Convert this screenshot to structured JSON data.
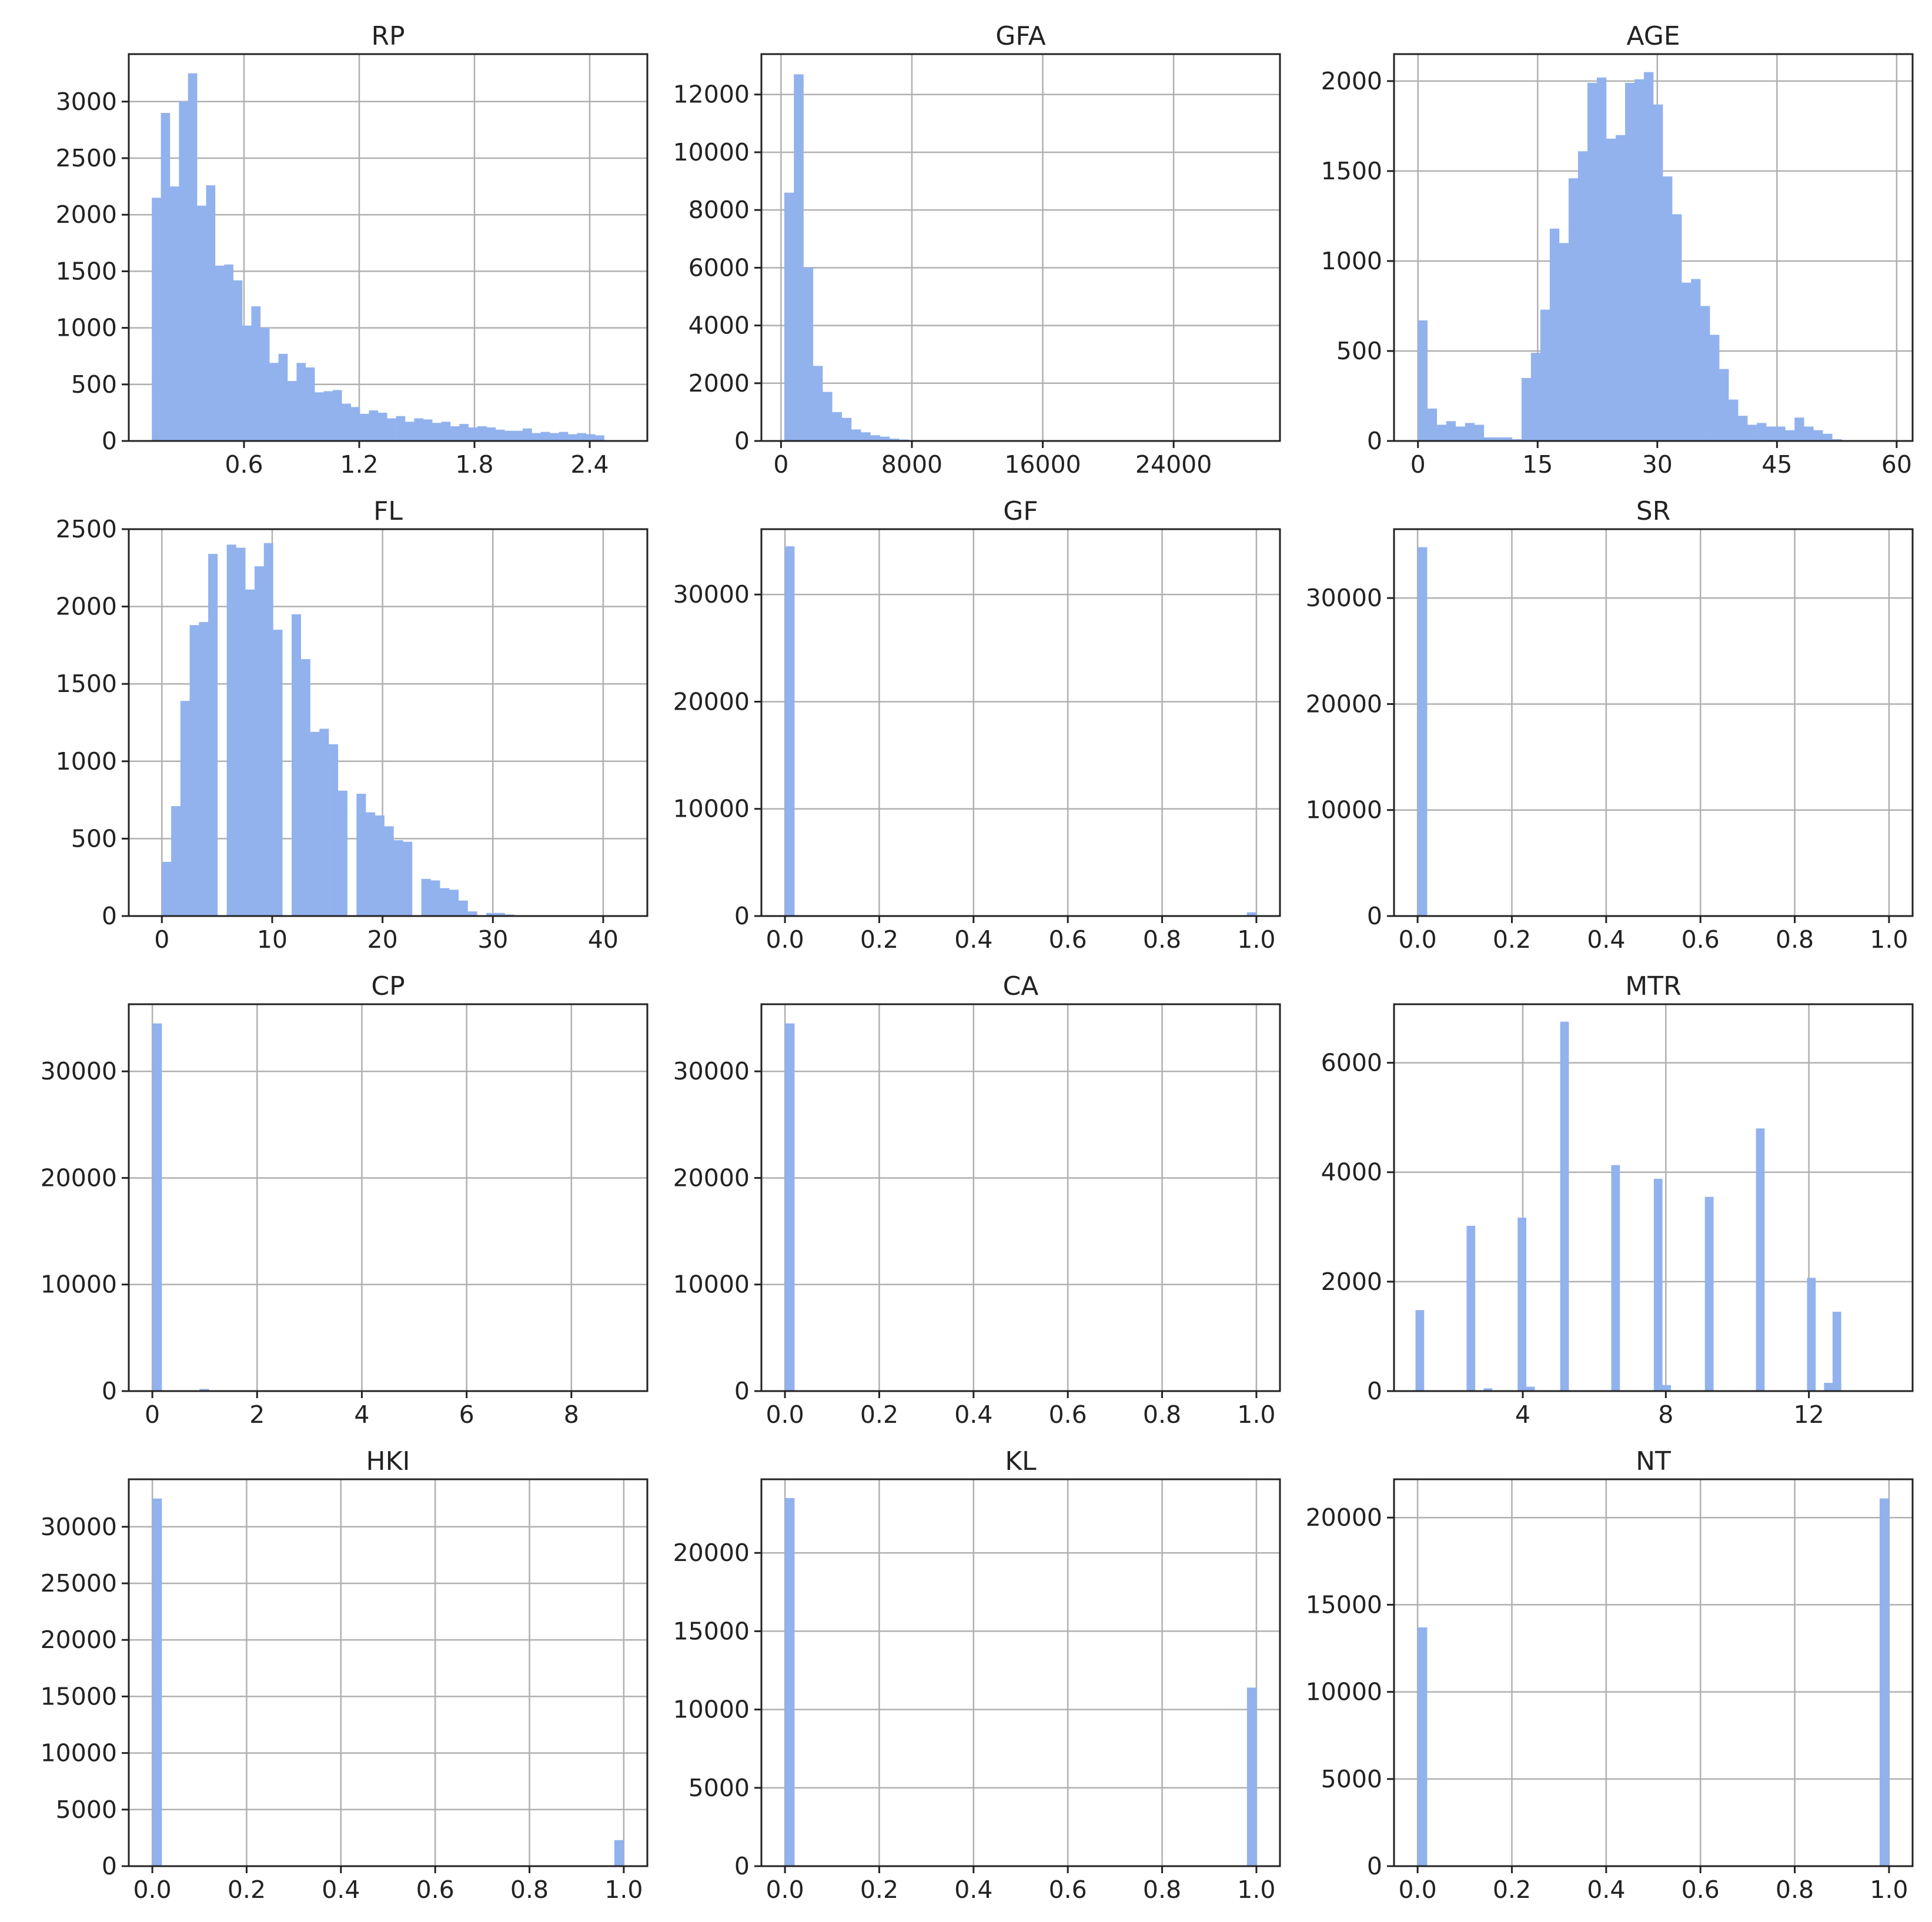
{
  "bar_color": "#92b2ee",
  "chart_data": [
    {
      "type": "bar",
      "title": "RP",
      "grid": true,
      "xlim": [
        0.0,
        2.7
      ],
      "ylim": [
        0,
        3420
      ],
      "xticks": [
        0.6,
        1.2,
        1.8,
        2.4
      ],
      "xtick_labels": [
        "0.6",
        "1.2",
        "1.8",
        "2.4"
      ],
      "yticks": [
        0,
        500,
        1000,
        1500,
        2000,
        2500,
        3000
      ],
      "ytick_labels": [
        "0",
        "500",
        "1000",
        "1500",
        "2000",
        "2500",
        "3000"
      ],
      "bin_start": 0.12,
      "bin_width": 0.0471,
      "values": [
        2150,
        2900,
        2250,
        3000,
        3250,
        2080,
        2260,
        1550,
        1560,
        1420,
        1020,
        1190,
        1000,
        690,
        770,
        530,
        690,
        650,
        430,
        440,
        450,
        330,
        300,
        240,
        270,
        250,
        200,
        220,
        170,
        200,
        190,
        160,
        170,
        130,
        150,
        120,
        130,
        120,
        100,
        90,
        90,
        110,
        70,
        80,
        70,
        80,
        60,
        70,
        60,
        50
      ]
    },
    {
      "type": "bar",
      "title": "GFA",
      "grid": true,
      "xlim": [
        -1200,
        30500
      ],
      "ylim": [
        0,
        13400
      ],
      "xticks": [
        0,
        8000,
        16000,
        24000
      ],
      "xtick_labels": [
        "0",
        "8000",
        "16000",
        "24000"
      ],
      "yticks": [
        0,
        2000,
        4000,
        6000,
        8000,
        10000,
        12000
      ],
      "ytick_labels": [
        "0",
        "2000",
        "4000",
        "6000",
        "8000",
        "10000",
        "12000"
      ],
      "bin_start": 200,
      "bin_width": 585,
      "values": [
        8600,
        12700,
        6000,
        2600,
        1700,
        1000,
        800,
        400,
        300,
        200,
        150,
        80,
        50,
        30,
        20,
        15,
        10,
        8,
        6,
        5,
        4,
        3,
        3,
        2,
        2,
        2,
        1,
        1,
        1,
        1,
        1,
        1,
        1,
        1,
        1,
        1,
        1,
        1,
        1,
        1,
        1,
        1,
        1,
        1,
        1,
        1,
        1,
        1,
        1,
        1
      ]
    },
    {
      "type": "bar",
      "title": "AGE",
      "grid": true,
      "xlim": [
        -3,
        62
      ],
      "ylim": [
        0,
        2150
      ],
      "xticks": [
        0,
        15,
        30,
        45,
        60
      ],
      "xtick_labels": [
        "0",
        "15",
        "30",
        "45",
        "60"
      ],
      "yticks": [
        0,
        500,
        1000,
        1500,
        2000
      ],
      "ytick_labels": [
        "0",
        "500",
        "1000",
        "1500",
        "2000"
      ],
      "bin_start": 0,
      "bin_width": 1.18,
      "values": [
        670,
        180,
        90,
        110,
        80,
        100,
        90,
        20,
        20,
        20,
        10,
        350,
        490,
        730,
        1180,
        1100,
        1460,
        1610,
        1990,
        2020,
        1680,
        1700,
        1990,
        2010,
        2050,
        1870,
        1470,
        1260,
        880,
        900,
        750,
        590,
        400,
        230,
        140,
        90,
        100,
        80,
        80,
        60,
        130,
        80,
        60,
        40,
        10,
        0,
        0,
        0,
        0,
        0
      ]
    },
    {
      "type": "bar",
      "title": "FL",
      "grid": true,
      "xlim": [
        -3,
        44
      ],
      "ylim": [
        0,
        2500
      ],
      "xticks": [
        0,
        10,
        20,
        30,
        40
      ],
      "xtick_labels": [
        "0",
        "10",
        "20",
        "30",
        "40"
      ],
      "yticks": [
        0,
        500,
        1000,
        1500,
        2000,
        2500
      ],
      "ytick_labels": [
        "0",
        "500",
        "1000",
        "1500",
        "2000",
        "2500"
      ],
      "bin_start": 0,
      "bin_width": 0.84,
      "values": [
        350,
        710,
        1390,
        1880,
        1900,
        2340,
        0,
        2400,
        2380,
        2110,
        2260,
        2410,
        1850,
        0,
        1950,
        1660,
        1190,
        1210,
        1110,
        810,
        0,
        790,
        670,
        650,
        580,
        490,
        480,
        0,
        240,
        230,
        180,
        170,
        100,
        30,
        0,
        20,
        20,
        10,
        5,
        0,
        0,
        0,
        0,
        0,
        0,
        0,
        0,
        0,
        0,
        0
      ]
    },
    {
      "type": "bar",
      "title": "GF",
      "grid": true,
      "xlim": [
        -0.05,
        1.05
      ],
      "ylim": [
        0,
        36100
      ],
      "xticks": [
        0.0,
        0.2,
        0.4,
        0.6,
        0.8,
        1.0
      ],
      "xtick_labels": [
        "0.0",
        "0.2",
        "0.4",
        "0.6",
        "0.8",
        "1.0"
      ],
      "yticks": [
        0,
        10000,
        20000,
        30000
      ],
      "ytick_labels": [
        "0",
        "10000",
        "20000",
        "30000"
      ],
      "bin_start": 0,
      "bin_width": 0.02,
      "values": [
        34500,
        0,
        0,
        0,
        0,
        0,
        0,
        0,
        0,
        0,
        0,
        0,
        0,
        0,
        0,
        0,
        0,
        0,
        0,
        0,
        0,
        0,
        0,
        0,
        0,
        0,
        0,
        0,
        0,
        0,
        0,
        0,
        0,
        0,
        0,
        0,
        0,
        0,
        0,
        0,
        0,
        0,
        0,
        0,
        0,
        0,
        0,
        0,
        0,
        350
      ]
    },
    {
      "type": "bar",
      "title": "SR",
      "grid": true,
      "xlim": [
        -0.05,
        1.05
      ],
      "ylim": [
        0,
        36500
      ],
      "xticks": [
        0.0,
        0.2,
        0.4,
        0.6,
        0.8,
        1.0
      ],
      "xtick_labels": [
        "0.0",
        "0.2",
        "0.4",
        "0.6",
        "0.8",
        "1.0"
      ],
      "yticks": [
        0,
        10000,
        20000,
        30000
      ],
      "ytick_labels": [
        "0",
        "10000",
        "20000",
        "30000"
      ],
      "bin_start": 0,
      "bin_width": 0.02,
      "values": [
        34800,
        0,
        0,
        0,
        0,
        0,
        0,
        0,
        0,
        0,
        0,
        0,
        0,
        0,
        0,
        0,
        0,
        0,
        0,
        0,
        0,
        0,
        0,
        0,
        0,
        0,
        0,
        0,
        0,
        0,
        0,
        0,
        0,
        0,
        0,
        0,
        0,
        0,
        0,
        0,
        0,
        0,
        0,
        0,
        0,
        0,
        0,
        0,
        0,
        0
      ]
    },
    {
      "type": "bar",
      "title": "CP",
      "grid": true,
      "xlim": [
        -0.45,
        9.45
      ],
      "ylim": [
        0,
        36300
      ],
      "xticks": [
        0,
        2,
        4,
        6,
        8
      ],
      "xtick_labels": [
        "0",
        "2",
        "4",
        "6",
        "8"
      ],
      "yticks": [
        0,
        10000,
        20000,
        30000
      ],
      "ytick_labels": [
        "0",
        "10000",
        "20000",
        "30000"
      ],
      "bin_start": 0,
      "bin_width": 0.18,
      "values": [
        34500,
        0,
        0,
        0,
        0,
        200,
        0,
        0,
        0,
        0,
        0,
        0,
        0,
        0,
        0,
        0,
        0,
        0,
        0,
        0,
        0,
        0,
        0,
        0,
        0,
        0,
        0,
        0,
        0,
        0,
        0,
        0,
        0,
        0,
        0,
        0,
        0,
        0,
        0,
        0,
        0,
        0,
        0,
        0,
        0,
        0,
        0,
        0,
        0,
        0
      ]
    },
    {
      "type": "bar",
      "title": "CA",
      "grid": true,
      "xlim": [
        -0.05,
        1.05
      ],
      "ylim": [
        0,
        36300
      ],
      "xticks": [
        0.0,
        0.2,
        0.4,
        0.6,
        0.8,
        1.0
      ],
      "xtick_labels": [
        "0.0",
        "0.2",
        "0.4",
        "0.6",
        "0.8",
        "1.0"
      ],
      "yticks": [
        0,
        10000,
        20000,
        30000
      ],
      "ytick_labels": [
        "0",
        "10000",
        "20000",
        "30000"
      ],
      "bin_start": 0,
      "bin_width": 0.02,
      "values": [
        34500,
        0,
        0,
        0,
        0,
        0,
        0,
        0,
        0,
        0,
        0,
        0,
        0,
        0,
        0,
        0,
        0,
        0,
        0,
        0,
        0,
        0,
        0,
        0,
        0,
        0,
        0,
        0,
        0,
        0,
        0,
        0,
        0,
        0,
        0,
        0,
        0,
        0,
        0,
        0,
        0,
        0,
        0,
        0,
        0,
        0,
        0,
        0,
        0,
        80
      ]
    },
    {
      "type": "bar",
      "title": "MTR",
      "grid": true,
      "xlim": [
        0.4,
        14.9
      ],
      "ylim": [
        0,
        7070
      ],
      "xticks": [
        4,
        8,
        12
      ],
      "xtick_labels": [
        "4",
        "8",
        "12"
      ],
      "yticks": [
        0,
        2000,
        4000,
        6000
      ],
      "ytick_labels": [
        "0",
        "2000",
        "4000",
        "6000"
      ],
      "bin_start": 1.0,
      "bin_width": 0.238,
      "values": [
        1480,
        0,
        0,
        0,
        0,
        0,
        3020,
        0,
        50,
        0,
        0,
        0,
        3170,
        80,
        0,
        0,
        0,
        6750,
        0,
        0,
        0,
        0,
        0,
        4130,
        0,
        0,
        0,
        0,
        3880,
        110,
        0,
        0,
        0,
        0,
        3550,
        0,
        0,
        0,
        0,
        0,
        4800,
        0,
        0,
        0,
        0,
        0,
        2070,
        0,
        150,
        1450
      ]
    },
    {
      "type": "bar",
      "title": "HKI",
      "grid": true,
      "xlim": [
        -0.05,
        1.05
      ],
      "ylim": [
        0,
        34200
      ],
      "xticks": [
        0.0,
        0.2,
        0.4,
        0.6,
        0.8,
        1.0
      ],
      "xtick_labels": [
        "0.0",
        "0.2",
        "0.4",
        "0.6",
        "0.8",
        "1.0"
      ],
      "yticks": [
        0,
        5000,
        10000,
        15000,
        20000,
        25000,
        30000
      ],
      "ytick_labels": [
        "0",
        "5000",
        "10000",
        "15000",
        "20000",
        "25000",
        "30000"
      ],
      "bin_start": 0,
      "bin_width": 0.02,
      "values": [
        32500,
        0,
        0,
        0,
        0,
        0,
        0,
        0,
        0,
        0,
        0,
        0,
        0,
        0,
        0,
        0,
        0,
        0,
        0,
        0,
        0,
        0,
        0,
        0,
        0,
        0,
        0,
        0,
        0,
        0,
        0,
        0,
        0,
        0,
        0,
        0,
        0,
        0,
        0,
        0,
        0,
        0,
        0,
        0,
        0,
        0,
        0,
        0,
        0,
        2300
      ]
    },
    {
      "type": "bar",
      "title": "KL",
      "grid": true,
      "xlim": [
        -0.05,
        1.05
      ],
      "ylim": [
        0,
        24700
      ],
      "xticks": [
        0.0,
        0.2,
        0.4,
        0.6,
        0.8,
        1.0
      ],
      "xtick_labels": [
        "0.0",
        "0.2",
        "0.4",
        "0.6",
        "0.8",
        "1.0"
      ],
      "yticks": [
        0,
        5000,
        10000,
        15000,
        20000
      ],
      "ytick_labels": [
        "0",
        "5000",
        "10000",
        "15000",
        "20000"
      ],
      "bin_start": 0,
      "bin_width": 0.02,
      "values": [
        23500,
        0,
        0,
        0,
        0,
        0,
        0,
        0,
        0,
        0,
        0,
        0,
        0,
        0,
        0,
        0,
        0,
        0,
        0,
        0,
        0,
        0,
        0,
        0,
        0,
        0,
        0,
        0,
        0,
        0,
        0,
        0,
        0,
        0,
        0,
        0,
        0,
        0,
        0,
        0,
        0,
        0,
        0,
        0,
        0,
        0,
        0,
        0,
        0,
        11400
      ]
    },
    {
      "type": "bar",
      "title": "NT",
      "grid": true,
      "xlim": [
        -0.05,
        1.05
      ],
      "ylim": [
        0,
        22200
      ],
      "xticks": [
        0.0,
        0.2,
        0.4,
        0.6,
        0.8,
        1.0
      ],
      "xtick_labels": [
        "0.0",
        "0.2",
        "0.4",
        "0.6",
        "0.8",
        "1.0"
      ],
      "yticks": [
        0,
        5000,
        10000,
        15000,
        20000
      ],
      "ytick_labels": [
        "0",
        "5000",
        "10000",
        "15000",
        "20000"
      ],
      "bin_start": 0,
      "bin_width": 0.02,
      "values": [
        13700,
        0,
        0,
        0,
        0,
        0,
        0,
        0,
        0,
        0,
        0,
        0,
        0,
        0,
        0,
        0,
        0,
        0,
        0,
        0,
        0,
        0,
        0,
        0,
        0,
        0,
        0,
        0,
        0,
        0,
        0,
        0,
        0,
        0,
        0,
        0,
        0,
        0,
        0,
        0,
        0,
        0,
        0,
        0,
        0,
        0,
        0,
        0,
        0,
        21100
      ]
    }
  ]
}
